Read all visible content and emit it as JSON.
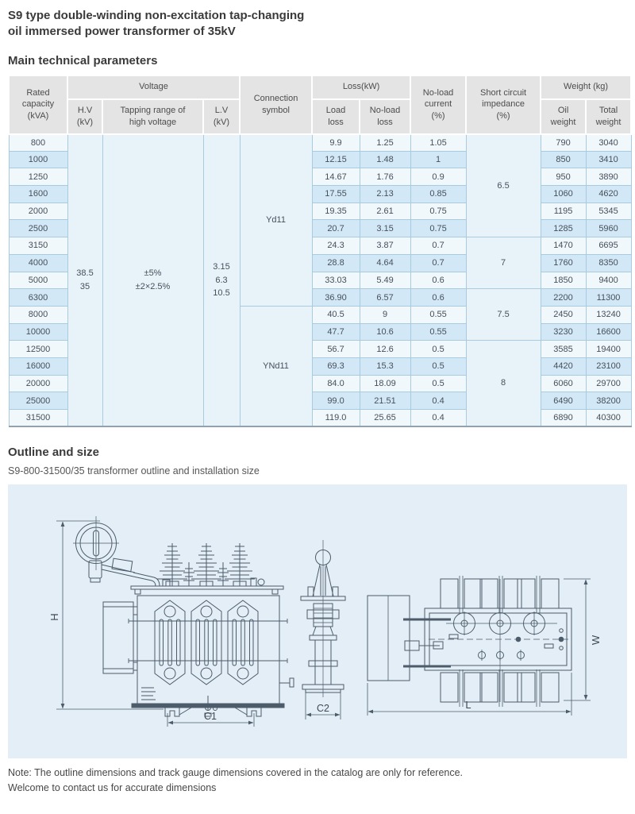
{
  "page": {
    "title_line1": "S9 type double-winding non-excitation tap-changing",
    "title_line2": "oil immersed power transformer of 35kV",
    "section1_heading": "Main technical parameters",
    "section2_heading": "Outline and size",
    "section2_caption": "S9-800-31500/35 transformer outline and installation size",
    "note_line1": "Note: The outline dimensions and track gauge dimensions covered in the catalog are only for reference.",
    "note_line2": "Welcome to contact us for accurate dimensions"
  },
  "colors": {
    "row_light": "#f0f8fc",
    "row_blue": "#d2e8f6",
    "merged_bg": "#e7f2f9",
    "header_bg": "#e4e4e4",
    "panel_bg": "#e3eef7",
    "line": "#4d5c6a"
  },
  "table": {
    "headers": {
      "rated_capacity": "Rated\ncapacity\n(kVA)",
      "voltage": "Voltage",
      "hv": "H.V\n(kV)",
      "tapping": "Tapping range of\nhigh voltage",
      "lv": "L.V\n(kV)",
      "connection": "Connection\nsymbol",
      "loss": "Loss(kW)",
      "load_loss": "Load\nloss",
      "noload_loss": "No-load\nloss",
      "noload_current": "No-load\ncurrent\n(%)",
      "impedance": "Short circuit\nimpedance\n(%)",
      "weight": "Weight (kg)",
      "oil_weight": "Oil\nweight",
      "total_weight": "Total\nweight"
    },
    "hv_value": "38.5\n35",
    "tapping_value": "±5%\n±2×2.5%",
    "lv_value": "3.15\n6.3\n10.5",
    "connection_groups": [
      {
        "label": "Yd11",
        "rows": 10
      },
      {
        "label": "YNd11",
        "rows": 7
      }
    ],
    "impedance_groups": [
      {
        "label": "6.5",
        "rows": 6
      },
      {
        "label": "7",
        "rows": 3
      },
      {
        "label": "7.5",
        "rows": 3
      },
      {
        "label": "8",
        "rows": 5
      }
    ],
    "rows": [
      {
        "capacity": "800",
        "load_loss": "9.9",
        "noload_loss": "1.25",
        "noload_current": "1.05",
        "oil": "790",
        "total": "3040"
      },
      {
        "capacity": "1000",
        "load_loss": "12.15",
        "noload_loss": "1.48",
        "noload_current": "1",
        "oil": "850",
        "total": "3410"
      },
      {
        "capacity": "1250",
        "load_loss": "14.67",
        "noload_loss": "1.76",
        "noload_current": "0.9",
        "oil": "950",
        "total": "3890"
      },
      {
        "capacity": "1600",
        "load_loss": "17.55",
        "noload_loss": "2.13",
        "noload_current": "0.85",
        "oil": "1060",
        "total": "4620"
      },
      {
        "capacity": "2000",
        "load_loss": "19.35",
        "noload_loss": "2.61",
        "noload_current": "0.75",
        "oil": "1195",
        "total": "5345"
      },
      {
        "capacity": "2500",
        "load_loss": "20.7",
        "noload_loss": "3.15",
        "noload_current": "0.75",
        "oil": "1285",
        "total": "5960"
      },
      {
        "capacity": "3150",
        "load_loss": "24.3",
        "noload_loss": "3.87",
        "noload_current": "0.7",
        "oil": "1470",
        "total": "6695"
      },
      {
        "capacity": "4000",
        "load_loss": "28.8",
        "noload_loss": "4.64",
        "noload_current": "0.7",
        "oil": "1760",
        "total": "8350"
      },
      {
        "capacity": "5000",
        "load_loss": "33.03",
        "noload_loss": "5.49",
        "noload_current": "0.6",
        "oil": "1850",
        "total": "9400"
      },
      {
        "capacity": "6300",
        "load_loss": "36.90",
        "noload_loss": "6.57",
        "noload_current": "0.6",
        "oil": "2200",
        "total": "11300"
      },
      {
        "capacity": "8000",
        "load_loss": "40.5",
        "noload_loss": "9",
        "noload_current": "0.55",
        "oil": "2450",
        "total": "13240"
      },
      {
        "capacity": "10000",
        "load_loss": "47.7",
        "noload_loss": "10.6",
        "noload_current": "0.55",
        "oil": "3230",
        "total": "16600"
      },
      {
        "capacity": "12500",
        "load_loss": "56.7",
        "noload_loss": "12.6",
        "noload_current": "0.5",
        "oil": "3585",
        "total": "19400"
      },
      {
        "capacity": "16000",
        "load_loss": "69.3",
        "noload_loss": "15.3",
        "noload_current": "0.5",
        "oil": "4420",
        "total": "23100"
      },
      {
        "capacity": "20000",
        "load_loss": "84.0",
        "noload_loss": "18.09",
        "noload_current": "0.5",
        "oil": "6060",
        "total": "29700"
      },
      {
        "capacity": "25000",
        "load_loss": "99.0",
        "noload_loss": "21.51",
        "noload_current": "0.4",
        "oil": "6490",
        "total": "38200"
      },
      {
        "capacity": "31500",
        "load_loss": "119.0",
        "noload_loss": "25.65",
        "noload_current": "0.4",
        "oil": "6890",
        "total": "40300"
      }
    ]
  },
  "diagram": {
    "labels": {
      "h": "H",
      "c1": "C1",
      "c2": "C2",
      "l": "L",
      "w": "W"
    }
  }
}
